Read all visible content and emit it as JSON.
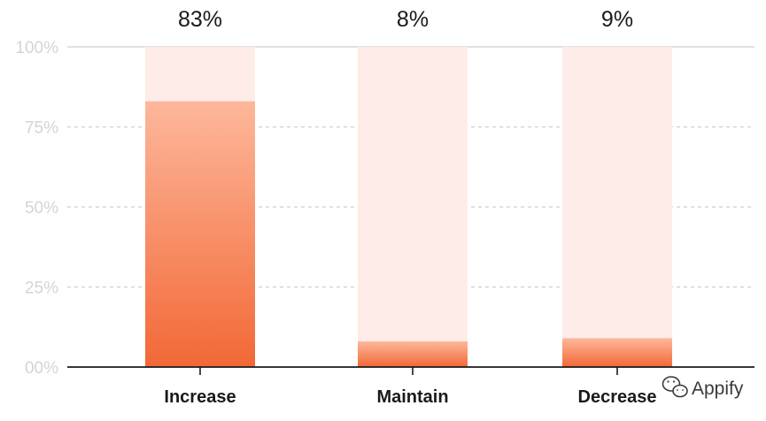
{
  "chart_data": {
    "type": "bar",
    "categories": [
      "Increase",
      "Maintain",
      "Decrease"
    ],
    "values": [
      83,
      8,
      9
    ],
    "value_labels": [
      "83%",
      "8%",
      "9%"
    ],
    "y_tick_labels": [
      "00%",
      "25%",
      "50%",
      "75%",
      "100%"
    ],
    "y_ticks": [
      0,
      25,
      50,
      75,
      100
    ],
    "ylim": [
      0,
      100
    ],
    "grid": true,
    "colors": {
      "bar_top": "#fdb79b",
      "bar_bottom": "#f26836",
      "bar_background": "#fdece7",
      "grid": "#cfcfcf",
      "axis": "#1a1a1a"
    }
  },
  "watermark": {
    "text": "Appify",
    "icon": "wechat-icon"
  }
}
